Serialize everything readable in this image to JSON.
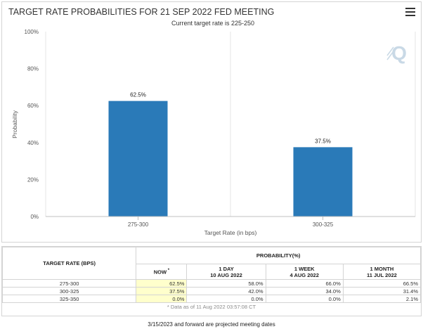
{
  "chart_data": {
    "type": "bar",
    "title": "TARGET RATE PROBABILITIES FOR 21 SEP 2022 FED MEETING",
    "subtitle": "Current target rate is 225-250",
    "xlabel": "Target Rate (in bps)",
    "ylabel": "Probability",
    "categories": [
      "275-300",
      "300-325"
    ],
    "values": [
      62.5,
      37.5
    ],
    "data_labels": [
      "62.5%",
      "37.5%"
    ],
    "ylim": [
      0,
      100
    ],
    "yticks": [
      0,
      20,
      40,
      60,
      80,
      100
    ],
    "ytick_labels": [
      "0%",
      "20%",
      "40%",
      "60%",
      "80%",
      "100%"
    ],
    "bar_color": "#2a7ab8",
    "grid": "vertical"
  },
  "logo": {
    "glyph": "Q",
    "color": "#c9d9e6"
  },
  "table": {
    "header_target": "TARGET RATE (BPS)",
    "header_probability": "PROBABILITY(%)",
    "columns": [
      {
        "title": "NOW",
        "marker": "*",
        "date": ""
      },
      {
        "title": "1 DAY",
        "marker": "",
        "date": "10 AUG 2022"
      },
      {
        "title": "1 WEEK",
        "marker": "",
        "date": "4 AUG 2022"
      },
      {
        "title": "1 MONTH",
        "marker": "",
        "date": "11 JUL 2022"
      }
    ],
    "rows": [
      {
        "rate": "275-300",
        "values": [
          "62.5%",
          "58.0%",
          "66.0%",
          "66.5%"
        ]
      },
      {
        "rate": "300-325",
        "values": [
          "37.5%",
          "42.0%",
          "34.0%",
          "31.4%"
        ]
      },
      {
        "rate": "325-350",
        "values": [
          "0.0%",
          "0.0%",
          "0.0%",
          "2.1%"
        ]
      }
    ],
    "note": "* Data as of 11 Aug 2022 03:57:08 CT"
  },
  "footnote": "3/15/2023 and forward are projected meeting dates"
}
